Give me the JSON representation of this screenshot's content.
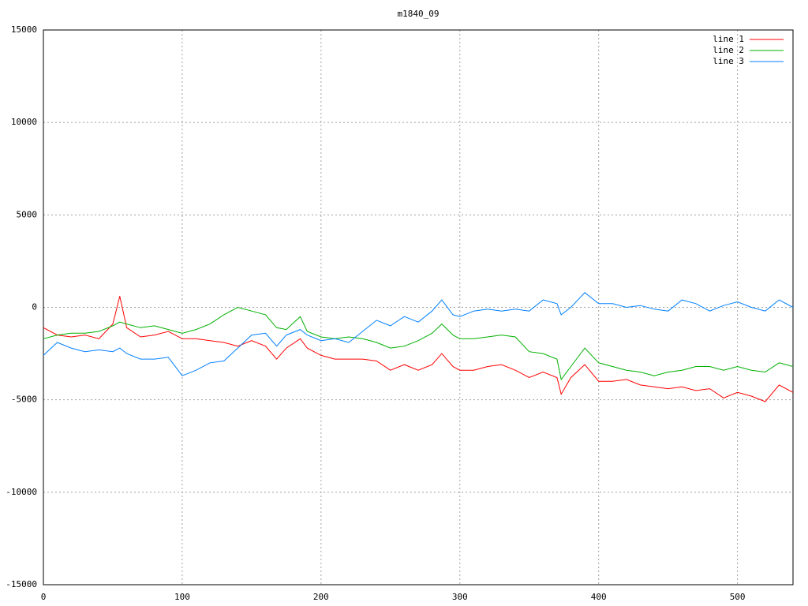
{
  "chart_data": {
    "type": "line",
    "title": "m1840_09",
    "x": [
      0,
      10,
      20,
      30,
      40,
      50,
      55,
      60,
      70,
      80,
      90,
      100,
      110,
      120,
      130,
      140,
      150,
      160,
      168,
      175,
      185,
      190,
      200,
      210,
      220,
      230,
      240,
      250,
      260,
      270,
      280,
      287,
      295,
      300,
      310,
      320,
      330,
      340,
      350,
      360,
      370,
      373,
      380,
      390,
      400,
      410,
      420,
      430,
      440,
      450,
      460,
      470,
      480,
      490,
      500,
      510,
      520,
      530,
      540
    ],
    "series": [
      {
        "name": "line 1",
        "color": "#ff0000",
        "values": [
          -1100,
          -1500,
          -1600,
          -1500,
          -1700,
          -900,
          600,
          -1100,
          -1600,
          -1500,
          -1300,
          -1700,
          -1700,
          -1800,
          -1900,
          -2100,
          -1800,
          -2100,
          -2800,
          -2200,
          -1700,
          -2200,
          -2600,
          -2800,
          -2800,
          -2800,
          -2900,
          -3400,
          -3100,
          -3400,
          -3100,
          -2500,
          -3200,
          -3400,
          -3400,
          -3200,
          -3100,
          -3400,
          -3800,
          -3500,
          -3800,
          -4700,
          -3800,
          -3100,
          -4000,
          -4000,
          -3900,
          -4200,
          -4300,
          -4400,
          -4300,
          -4500,
          -4400,
          -4900,
          -4600,
          -4800,
          -5100,
          -4200,
          -4600
        ]
      },
      {
        "name": "line 2",
        "color": "#00b000",
        "values": [
          -1700,
          -1500,
          -1400,
          -1400,
          -1300,
          -1000,
          -800,
          -900,
          -1100,
          -1000,
          -1200,
          -1400,
          -1200,
          -900,
          -400,
          0,
          -200,
          -400,
          -1100,
          -1200,
          -500,
          -1300,
          -1600,
          -1700,
          -1600,
          -1700,
          -1900,
          -2200,
          -2100,
          -1800,
          -1400,
          -900,
          -1500,
          -1700,
          -1700,
          -1600,
          -1500,
          -1600,
          -2400,
          -2500,
          -2800,
          -3900,
          -3200,
          -2200,
          -3000,
          -3200,
          -3400,
          -3500,
          -3700,
          -3500,
          -3400,
          -3200,
          -3200,
          -3400,
          -3200,
          -3400,
          -3500,
          -3000,
          -3200
        ]
      },
      {
        "name": "line 3",
        "color": "#0080ff",
        "values": [
          -2600,
          -1900,
          -2200,
          -2400,
          -2300,
          -2400,
          -2200,
          -2500,
          -2800,
          -2800,
          -2700,
          -3700,
          -3400,
          -3000,
          -2900,
          -2200,
          -1500,
          -1400,
          -2100,
          -1500,
          -1200,
          -1500,
          -1800,
          -1700,
          -1900,
          -1300,
          -700,
          -1000,
          -500,
          -800,
          -200,
          400,
          -400,
          -500,
          -200,
          -100,
          -200,
          -100,
          -200,
          400,
          200,
          -400,
          0,
          800,
          200,
          200,
          0,
          100,
          -100,
          -200,
          400,
          200,
          -200,
          100,
          300,
          0,
          -200,
          400,
          0
        ]
      }
    ],
    "xlim": [
      0,
      540
    ],
    "xticks": [
      0,
      100,
      200,
      300,
      400,
      500
    ],
    "ylim": [
      -15000,
      15000
    ],
    "yticks": [
      -15000,
      -10000,
      -5000,
      0,
      5000,
      10000,
      15000
    ],
    "grid": true,
    "legend": "top-right"
  }
}
